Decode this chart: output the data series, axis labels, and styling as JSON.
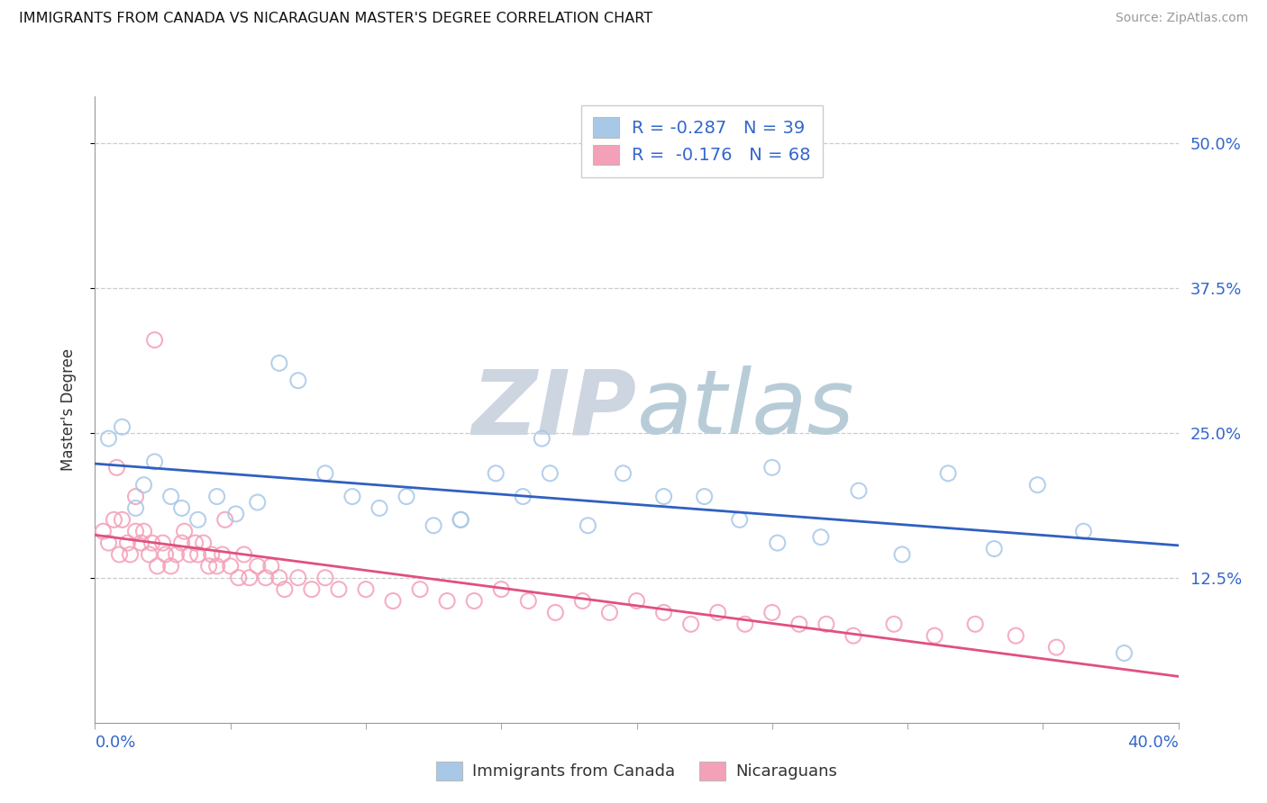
{
  "title": "IMMIGRANTS FROM CANADA VS NICARAGUAN MASTER'S DEGREE CORRELATION CHART",
  "source": "Source: ZipAtlas.com",
  "ylabel": "Master's Degree",
  "ytick_labels": [
    "12.5%",
    "25.0%",
    "37.5%",
    "50.0%"
  ],
  "ytick_values": [
    0.125,
    0.25,
    0.375,
    0.5
  ],
  "xmin": 0.0,
  "xmax": 0.4,
  "ymin": 0.0,
  "ymax": 0.54,
  "legend_label_blue": "Immigrants from Canada",
  "legend_label_pink": "Nicaraguans",
  "r_blue": -0.287,
  "n_blue": 39,
  "r_pink": -0.176,
  "n_pink": 68,
  "blue_color": "#a8c8e8",
  "pink_color": "#f4a0b8",
  "blue_line_color": "#3060c0",
  "pink_line_color": "#e05080",
  "text_blue": "#3366cc",
  "watermark_color": "#ccd8e8",
  "blue_scatter_x": [
    0.005,
    0.01,
    0.015,
    0.018,
    0.022,
    0.028,
    0.032,
    0.038,
    0.045,
    0.052,
    0.06,
    0.068,
    0.075,
    0.085,
    0.095,
    0.105,
    0.115,
    0.125,
    0.135,
    0.148,
    0.158,
    0.168,
    0.182,
    0.195,
    0.21,
    0.225,
    0.238,
    0.252,
    0.268,
    0.282,
    0.298,
    0.315,
    0.332,
    0.348,
    0.365,
    0.38,
    0.165,
    0.25,
    0.135
  ],
  "blue_scatter_y": [
    0.245,
    0.255,
    0.185,
    0.205,
    0.225,
    0.195,
    0.185,
    0.175,
    0.195,
    0.18,
    0.19,
    0.31,
    0.295,
    0.215,
    0.195,
    0.185,
    0.195,
    0.17,
    0.175,
    0.215,
    0.195,
    0.215,
    0.17,
    0.215,
    0.195,
    0.195,
    0.175,
    0.155,
    0.16,
    0.2,
    0.145,
    0.215,
    0.15,
    0.205,
    0.165,
    0.06,
    0.245,
    0.22,
    0.175
  ],
  "pink_scatter_x": [
    0.003,
    0.005,
    0.007,
    0.009,
    0.01,
    0.012,
    0.013,
    0.015,
    0.017,
    0.018,
    0.02,
    0.021,
    0.023,
    0.025,
    0.026,
    0.028,
    0.03,
    0.032,
    0.033,
    0.035,
    0.037,
    0.038,
    0.04,
    0.042,
    0.043,
    0.045,
    0.047,
    0.05,
    0.053,
    0.055,
    0.057,
    0.06,
    0.063,
    0.065,
    0.068,
    0.07,
    0.075,
    0.08,
    0.085,
    0.09,
    0.1,
    0.11,
    0.12,
    0.13,
    0.14,
    0.15,
    0.16,
    0.17,
    0.18,
    0.19,
    0.2,
    0.21,
    0.22,
    0.23,
    0.24,
    0.25,
    0.26,
    0.27,
    0.28,
    0.295,
    0.31,
    0.325,
    0.34,
    0.355,
    0.008,
    0.015,
    0.022,
    0.048
  ],
  "pink_scatter_y": [
    0.165,
    0.155,
    0.175,
    0.145,
    0.175,
    0.155,
    0.145,
    0.165,
    0.155,
    0.165,
    0.145,
    0.155,
    0.135,
    0.155,
    0.145,
    0.135,
    0.145,
    0.155,
    0.165,
    0.145,
    0.155,
    0.145,
    0.155,
    0.135,
    0.145,
    0.135,
    0.145,
    0.135,
    0.125,
    0.145,
    0.125,
    0.135,
    0.125,
    0.135,
    0.125,
    0.115,
    0.125,
    0.115,
    0.125,
    0.115,
    0.115,
    0.105,
    0.115,
    0.105,
    0.105,
    0.115,
    0.105,
    0.095,
    0.105,
    0.095,
    0.105,
    0.095,
    0.085,
    0.095,
    0.085,
    0.095,
    0.085,
    0.085,
    0.075,
    0.085,
    0.075,
    0.085,
    0.075,
    0.065,
    0.22,
    0.195,
    0.33,
    0.175
  ]
}
